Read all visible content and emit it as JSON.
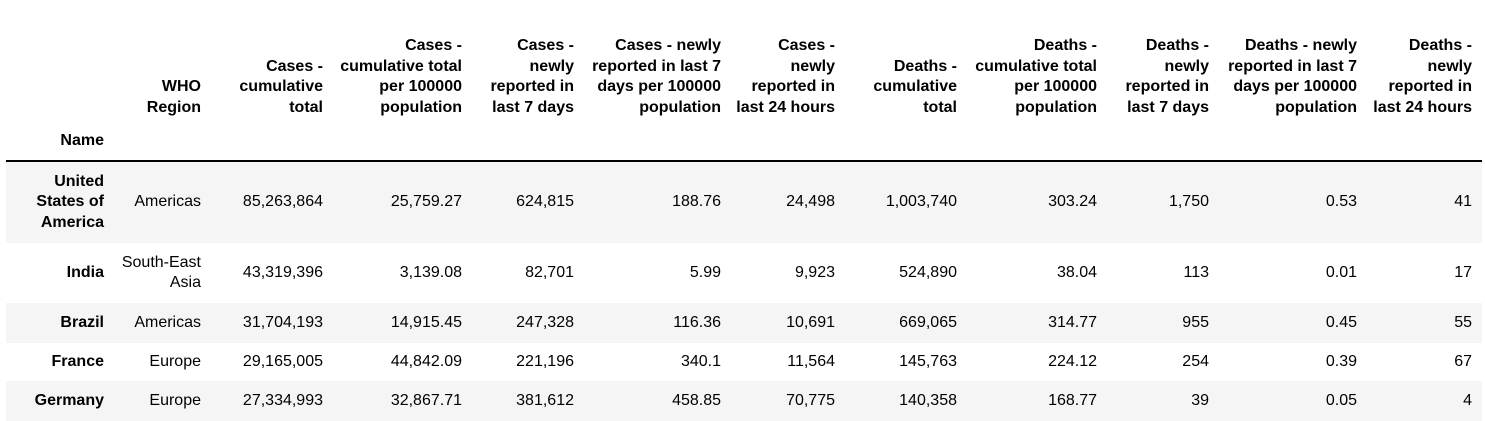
{
  "table": {
    "index_name": "Name",
    "columns": [
      "WHO Region",
      "Cases - cumulative total",
      "Cases - cumulative total per 100000 population",
      "Cases - newly reported in last 7 days",
      "Cases - newly reported in last 7 days per 100000 population",
      "Cases - newly reported in last 24 hours",
      "Deaths - cumulative total",
      "Deaths - cumulative total per 100000 population",
      "Deaths - newly reported in last 7 days",
      "Deaths - newly reported in last 7 days per 100000 population",
      "Deaths - newly reported in last 24 hours"
    ],
    "rows": [
      {
        "name": "United States of America",
        "cells": [
          "Americas",
          "85,263,864",
          "25,759.27",
          "624,815",
          "188.76",
          "24,498",
          "1,003,740",
          "303.24",
          "1,750",
          "0.53",
          "41"
        ]
      },
      {
        "name": "India",
        "cells": [
          "South-East Asia",
          "43,319,396",
          "3,139.08",
          "82,701",
          "5.99",
          "9,923",
          "524,890",
          "38.04",
          "113",
          "0.01",
          "17"
        ]
      },
      {
        "name": "Brazil",
        "cells": [
          "Americas",
          "31,704,193",
          "14,915.45",
          "247,328",
          "116.36",
          "10,691",
          "669,065",
          "314.77",
          "955",
          "0.45",
          "55"
        ]
      },
      {
        "name": "France",
        "cells": [
          "Europe",
          "29,165,005",
          "44,842.09",
          "221,196",
          "340.1",
          "11,564",
          "145,763",
          "224.12",
          "254",
          "0.39",
          "67"
        ]
      },
      {
        "name": "Germany",
        "cells": [
          "Europe",
          "27,334,993",
          "32,867.71",
          "381,612",
          "458.85",
          "70,775",
          "140,358",
          "168.77",
          "39",
          "0.05",
          "4"
        ]
      }
    ]
  }
}
